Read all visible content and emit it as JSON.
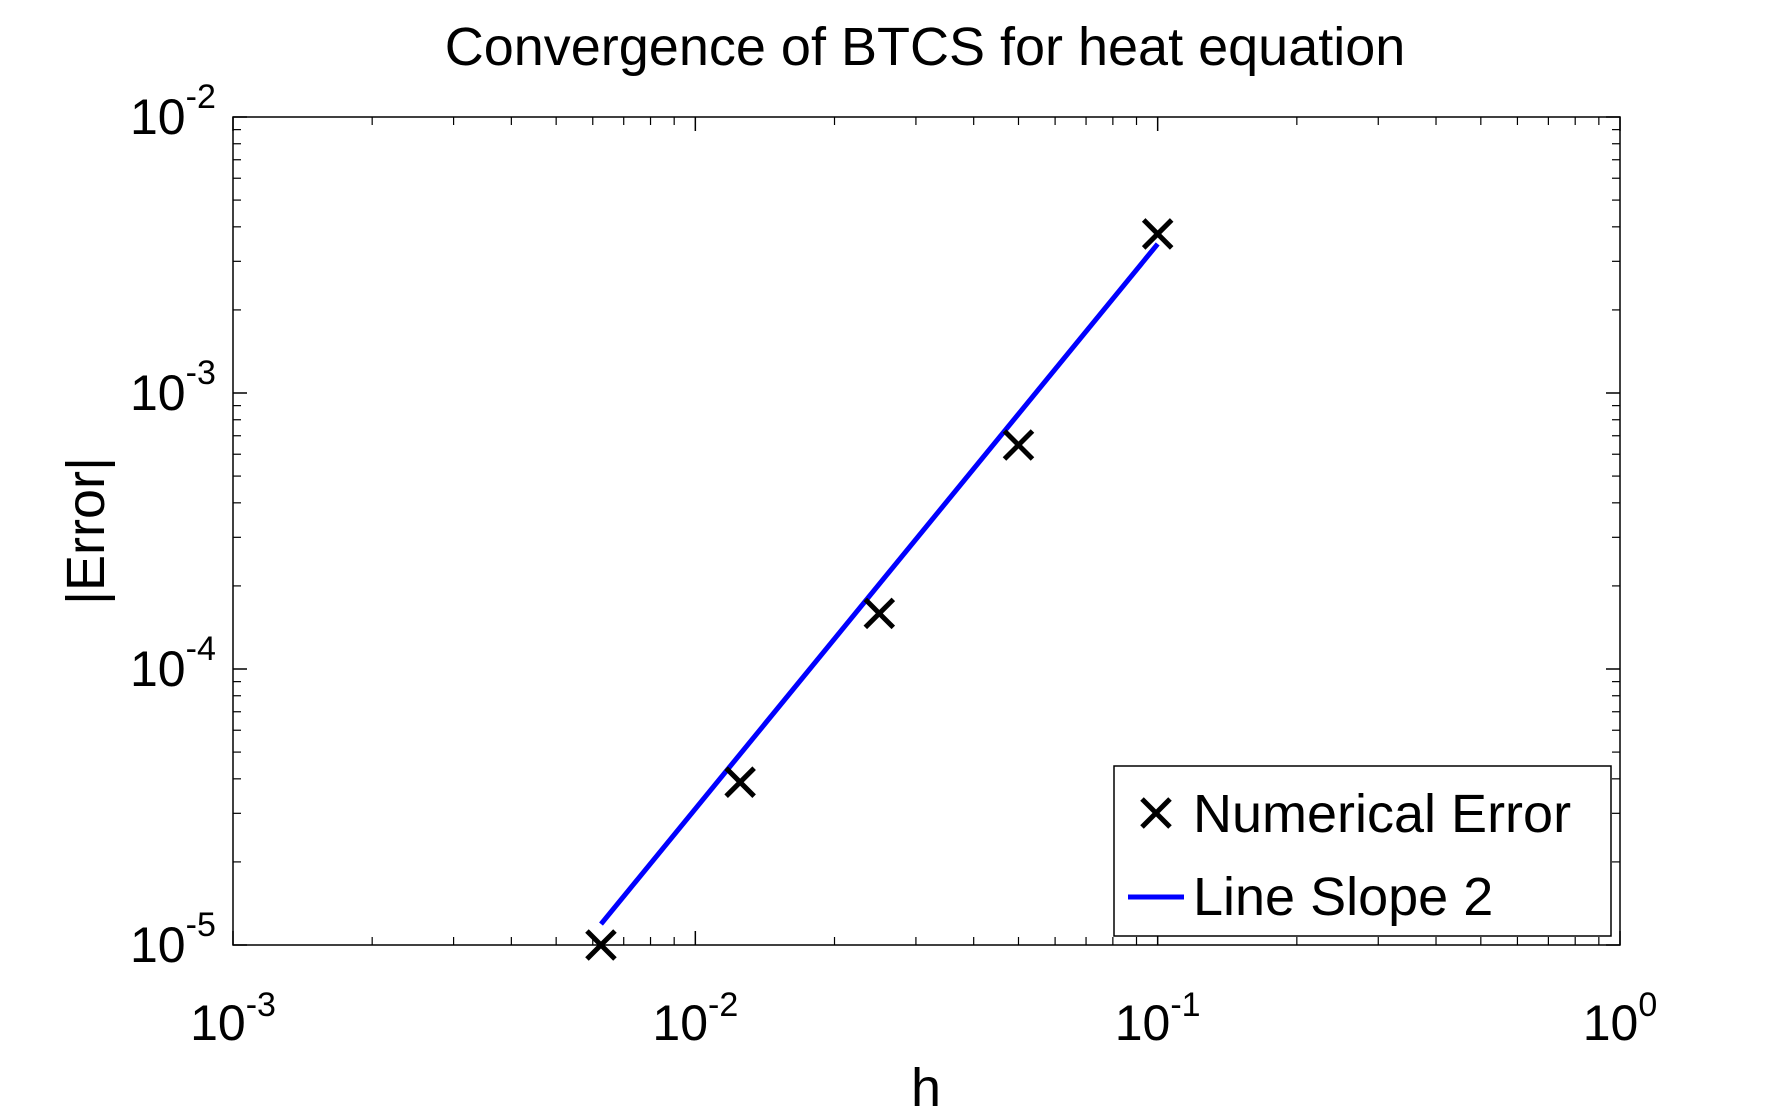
{
  "chart_data": {
    "type": "scatter",
    "title": "Convergence of BTCS for heat equation",
    "xlabel": "h",
    "ylabel": "|Error|",
    "x_scale": "log",
    "y_scale": "log",
    "xlim": [
      0.001,
      1
    ],
    "ylim": [
      1e-05,
      0.01
    ],
    "x_ticks": [
      {
        "base": "10",
        "exp": "-3",
        "value": 0.001
      },
      {
        "base": "10",
        "exp": "-2",
        "value": 0.01
      },
      {
        "base": "10",
        "exp": "-1",
        "value": 0.1
      },
      {
        "base": "10",
        "exp": "0",
        "value": 1
      }
    ],
    "y_ticks": [
      {
        "base": "10",
        "exp": "-5",
        "value": 1e-05
      },
      {
        "base": "10",
        "exp": "-4",
        "value": 0.0001
      },
      {
        "base": "10",
        "exp": "-3",
        "value": 0.001
      },
      {
        "base": "10",
        "exp": "-2",
        "value": 0.01
      }
    ],
    "grid": false,
    "legend_position": "bottom-right",
    "series": [
      {
        "name": "Numerical Error",
        "marker": "x",
        "color": "#000000",
        "x": [
          0.00625,
          0.0125,
          0.025,
          0.05,
          0.1
        ],
        "y": [
          1e-05,
          3.89e-05,
          0.000159,
          0.000648,
          0.00377
        ]
      },
      {
        "name": "Line Slope 2",
        "style": "line",
        "color": "#0000ff",
        "x": [
          0.00625,
          0.1
        ],
        "y": [
          1.19e-05,
          0.00347
        ]
      }
    ]
  }
}
